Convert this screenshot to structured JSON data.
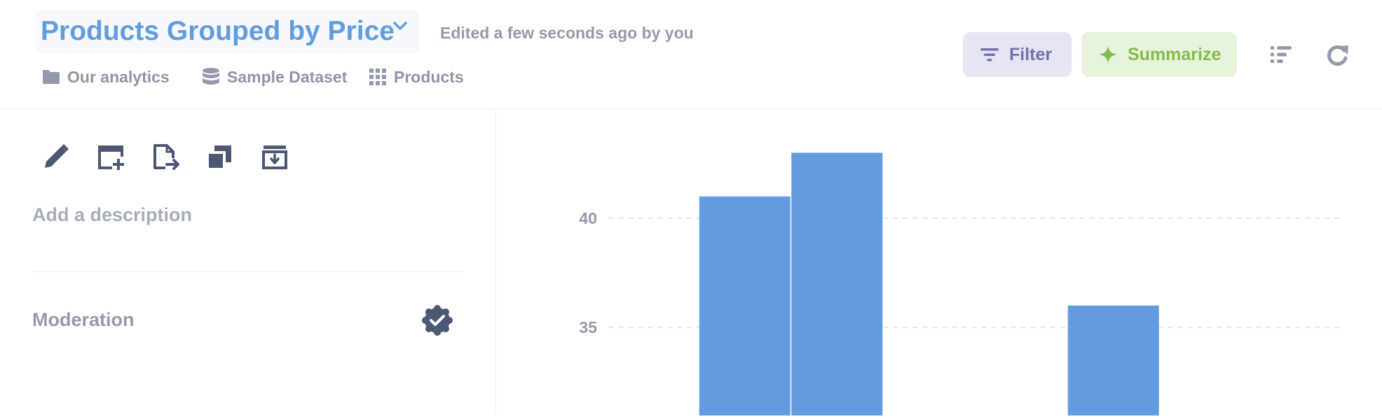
{
  "header": {
    "title": "Products Grouped by Price",
    "edited": "Edited a few seconds ago by you",
    "breadcrumbs": [
      {
        "label": "Our analytics",
        "icon": "folder-icon"
      },
      {
        "label": "Sample Dataset",
        "icon": "database-icon"
      },
      {
        "label": "Products",
        "icon": "grid-icon"
      }
    ],
    "filter_label": "Filter",
    "summarize_label": "Summarize"
  },
  "sidebar": {
    "description_placeholder": "Add a description",
    "moderation_label": "Moderation",
    "actions": [
      "edit-icon",
      "add-to-dashboard-icon",
      "move-icon",
      "duplicate-icon",
      "archive-icon"
    ]
  },
  "colors": {
    "brand": "#5f9ddf",
    "bar": "#629cde",
    "filter_bg": "#e6e5f4",
    "filter_text": "#7172ad",
    "summarize_bg": "#e8f3dc",
    "summarize_text": "#84bb4c"
  },
  "chart_data": {
    "type": "bar",
    "yticks": [
      35,
      40
    ],
    "ylim": [
      29.5,
      43.5
    ],
    "xlim": [
      0,
      8
    ],
    "grid": true,
    "values": [
      {
        "x": 1.5,
        "y": 41
      },
      {
        "x": 2.5,
        "y": 43
      },
      {
        "x": 5.5,
        "y": 36
      }
    ]
  }
}
